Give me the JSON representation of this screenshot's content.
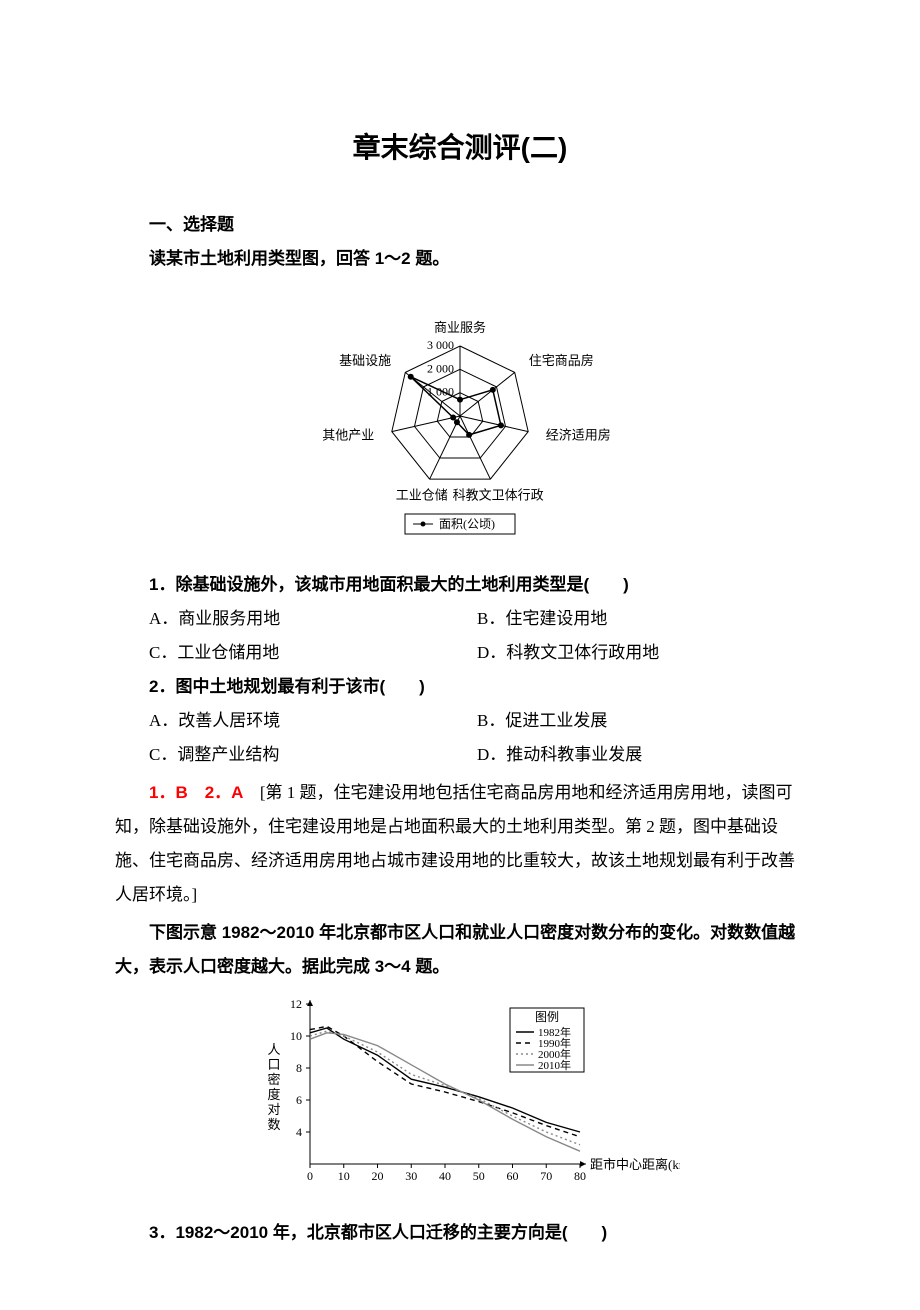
{
  "title": "章末综合测评(二)",
  "section1": "一、选择题",
  "intro1": "读某市土地利用类型图，回答 1～2 题。",
  "radar": {
    "axes": [
      "商业服务",
      "住宅商品房",
      "经济适用房",
      "科教文卫体行政",
      "工业仓储",
      "其他产业",
      "基础设施"
    ],
    "ticks": [
      "1 000",
      "2 000",
      "3 000"
    ],
    "values": [
      700,
      1800,
      1800,
      900,
      300,
      300,
      2700
    ],
    "max": 3000,
    "stroke": "#000000",
    "grid_color": "#000000",
    "marker_size": 3,
    "legend": "面积(公顷)"
  },
  "q1": {
    "stem_num": "1．",
    "stem": "除基础设施外，该城市用地面积最大的土地利用类型是(　　)",
    "A": "A．商业服务用地",
    "B": "B．住宅建设用地",
    "C": "C．工业仓储用地",
    "D": "D．科教文卫体行政用地"
  },
  "q2": {
    "stem_num": "2．",
    "stem": "图中土地规划最有利于该市(　　)",
    "A": "A．改善人居环境",
    "B": "B．促进工业发展",
    "C": "C．调整产业结构",
    "D": "D．推动科教事业发展"
  },
  "ans12": {
    "red": "1．B　2．A　",
    "body": "[第 1 题，住宅建设用地包括住宅商品房用地和经济适用房用地，读图可知，除基础设施外，住宅建设用地是占地面积最大的土地利用类型。第 2 题，图中基础设施、住宅商品房、经济适用房用地占城市建设用地的比重较大，故该土地规划最有利于改善人居环境。]"
  },
  "intro2": "下图示意 1982～2010 年北京都市区人口和就业人口密度对数分布的变化。对数数值越大，表示人口密度越大。据此完成 3～4 题。",
  "linechart": {
    "xlim": [
      0,
      80
    ],
    "ylim": [
      2,
      12
    ],
    "xticks": [
      0,
      10,
      20,
      30,
      40,
      50,
      60,
      70,
      80
    ],
    "yticks": [
      4,
      6,
      8,
      10,
      12
    ],
    "xlabel": "距市中心距离(km)",
    "ylabel": "人口密度对数",
    "legend_title": "图例",
    "series": [
      {
        "name": "1982年",
        "style": "solid",
        "color": "#000000",
        "pts": [
          [
            0,
            10.2
          ],
          [
            5,
            10.5
          ],
          [
            10,
            9.8
          ],
          [
            20,
            8.8
          ],
          [
            30,
            7.3
          ],
          [
            40,
            6.8
          ],
          [
            50,
            6.2
          ],
          [
            60,
            5.5
          ],
          [
            70,
            4.6
          ],
          [
            80,
            4.0
          ]
        ]
      },
      {
        "name": "1990年",
        "style": "dash",
        "color": "#000000",
        "pts": [
          [
            0,
            10.4
          ],
          [
            5,
            10.6
          ],
          [
            10,
            10.0
          ],
          [
            20,
            8.4
          ],
          [
            30,
            7.0
          ],
          [
            40,
            6.5
          ],
          [
            50,
            5.9
          ],
          [
            60,
            5.2
          ],
          [
            70,
            4.4
          ],
          [
            80,
            3.7
          ]
        ]
      },
      {
        "name": "2000年",
        "style": "dot",
        "color": "#888888",
        "pts": [
          [
            0,
            10.0
          ],
          [
            5,
            10.3
          ],
          [
            10,
            10.0
          ],
          [
            20,
            9.0
          ],
          [
            30,
            7.6
          ],
          [
            40,
            6.9
          ],
          [
            50,
            6.1
          ],
          [
            60,
            5.0
          ],
          [
            70,
            4.0
          ],
          [
            80,
            3.2
          ]
        ]
      },
      {
        "name": "2010年",
        "style": "solid",
        "color": "#888888",
        "pts": [
          [
            0,
            9.8
          ],
          [
            5,
            10.2
          ],
          [
            10,
            10.1
          ],
          [
            20,
            9.4
          ],
          [
            30,
            8.2
          ],
          [
            40,
            7.0
          ],
          [
            50,
            6.0
          ],
          [
            60,
            4.8
          ],
          [
            70,
            3.7
          ],
          [
            80,
            2.8
          ]
        ]
      }
    ]
  },
  "q3": {
    "stem_num": "3．",
    "stem": "1982～2010 年，北京都市区人口迁移的主要方向是(　　)"
  }
}
